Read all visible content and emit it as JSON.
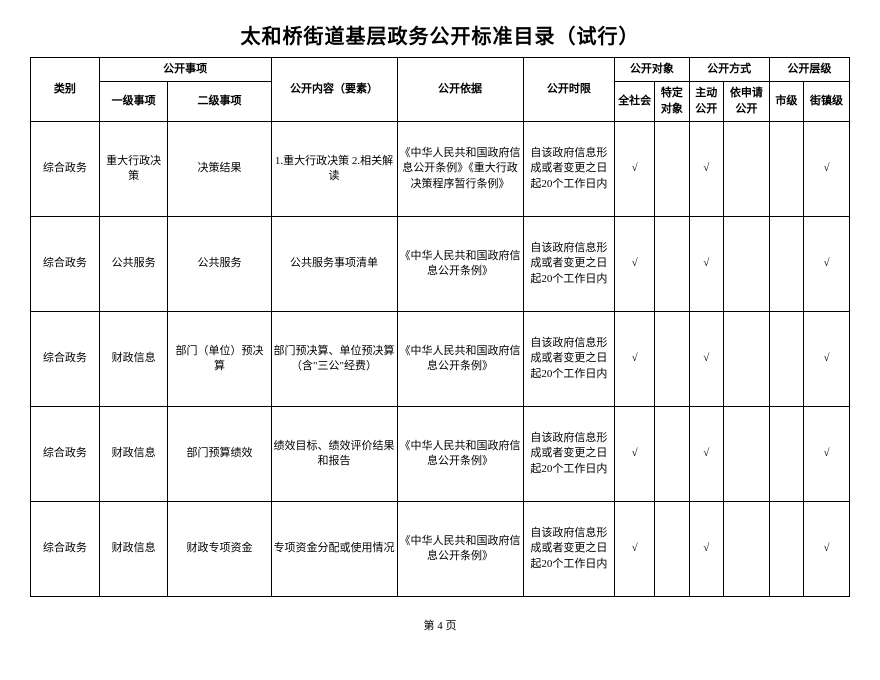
{
  "title": "太和桥街道基层政务公开标准目录（试行）",
  "footer": "第 4 页",
  "check": "√",
  "headers": {
    "category": "类别",
    "matters": "公开事项",
    "level1": "一级事项",
    "level2": "二级事项",
    "content": "公开内容（要素）",
    "basis": "公开依据",
    "time": "公开时限",
    "target": "公开对象",
    "target_all": "全社会",
    "target_specific": "特定对象",
    "method": "公开方式",
    "method_active": "主动公开",
    "method_request": "依申请公开",
    "level": "公开层级",
    "level_city": "市级",
    "level_town": "街镇级"
  },
  "rows": [
    {
      "category": "综合政务",
      "level1": "重大行政决策",
      "level2": "决策结果",
      "content": "1.重大行政决策 2.相关解读",
      "basis": "《中华人民共和国政府信息公开条例》《重大行政决策程序暂行条例》",
      "time": "自该政府信息形成或者变更之日起20个工作日内",
      "c1": "√",
      "c2": "",
      "c3": "√",
      "c4": "",
      "c5": "",
      "c6": "√"
    },
    {
      "category": "综合政务",
      "level1": "公共服务",
      "level2": "公共服务",
      "content": "公共服务事项清单",
      "basis": "《中华人民共和国政府信息公开条例》",
      "time": "自该政府信息形成或者变更之日起20个工作日内",
      "c1": "√",
      "c2": "",
      "c3": "√",
      "c4": "",
      "c5": "",
      "c6": "√"
    },
    {
      "category": "综合政务",
      "level1": "财政信息",
      "level2": "部门（单位）预决算",
      "content": "部门预决算、单位预决算（含\"三公\"经费）",
      "basis": "《中华人民共和国政府信息公开条例》",
      "time": "自该政府信息形成或者变更之日起20个工作日内",
      "c1": "√",
      "c2": "",
      "c3": "√",
      "c4": "",
      "c5": "",
      "c6": "√"
    },
    {
      "category": "综合政务",
      "level1": "财政信息",
      "level2": "部门预算绩效",
      "content": "绩效目标、绩效评价结果和报告",
      "basis": "《中华人民共和国政府信息公开条例》",
      "time": "自该政府信息形成或者变更之日起20个工作日内",
      "c1": "√",
      "c2": "",
      "c3": "√",
      "c4": "",
      "c5": "",
      "c6": "√"
    },
    {
      "category": "综合政务",
      "level1": "财政信息",
      "level2": "财政专项资金",
      "content": "专项资金分配或使用情况",
      "basis": "《中华人民共和国政府信息公开条例》",
      "time": "自该政府信息形成或者变更之日起20个工作日内",
      "c1": "√",
      "c2": "",
      "c3": "√",
      "c4": "",
      "c5": "",
      "c6": "√"
    }
  ],
  "colwidths": {
    "category": "60",
    "level1": "60",
    "level2": "90",
    "content": "110",
    "basis": "110",
    "time": "80",
    "c1": "35",
    "c2": "30",
    "c3": "30",
    "c4": "40",
    "c5": "30",
    "c6": "40"
  }
}
